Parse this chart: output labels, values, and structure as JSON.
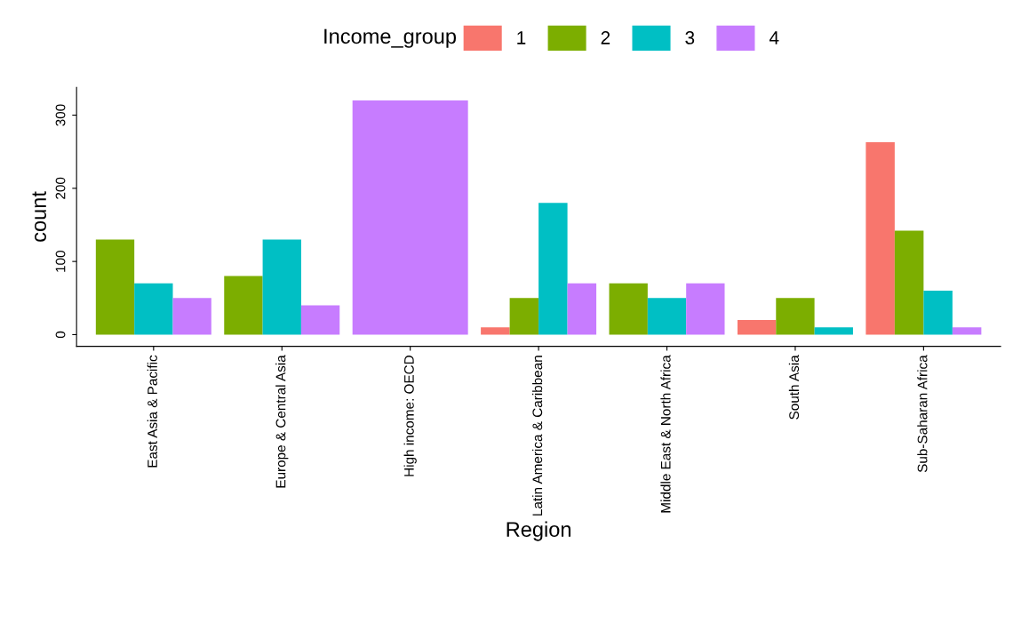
{
  "chart_data": {
    "type": "bar",
    "xlabel": "Region",
    "ylabel": "count",
    "legend_title": "Income_group",
    "legend": "top",
    "categories": [
      "East Asia & Pacific",
      "Europe & Central Asia",
      "High income: OECD",
      "Latin America & Caribbean",
      "Middle East & North Africa",
      "South Asia",
      "Sub-Saharan Africa"
    ],
    "series": [
      {
        "name": "1",
        "color": "#f8766d",
        "values": [
          null,
          null,
          null,
          10,
          null,
          20,
          263
        ]
      },
      {
        "name": "2",
        "color": "#7cae00",
        "values": [
          130,
          80,
          null,
          50,
          70,
          50,
          142
        ]
      },
      {
        "name": "3",
        "color": "#00bfc4",
        "values": [
          70,
          130,
          null,
          180,
          50,
          10,
          60
        ]
      },
      {
        "name": "4",
        "color": "#c77cff",
        "values": [
          50,
          40,
          320,
          70,
          70,
          null,
          10
        ]
      }
    ],
    "ylim": [
      -16,
      338
    ],
    "yticks": [
      0,
      100,
      200,
      300
    ],
    "grid": false
  }
}
